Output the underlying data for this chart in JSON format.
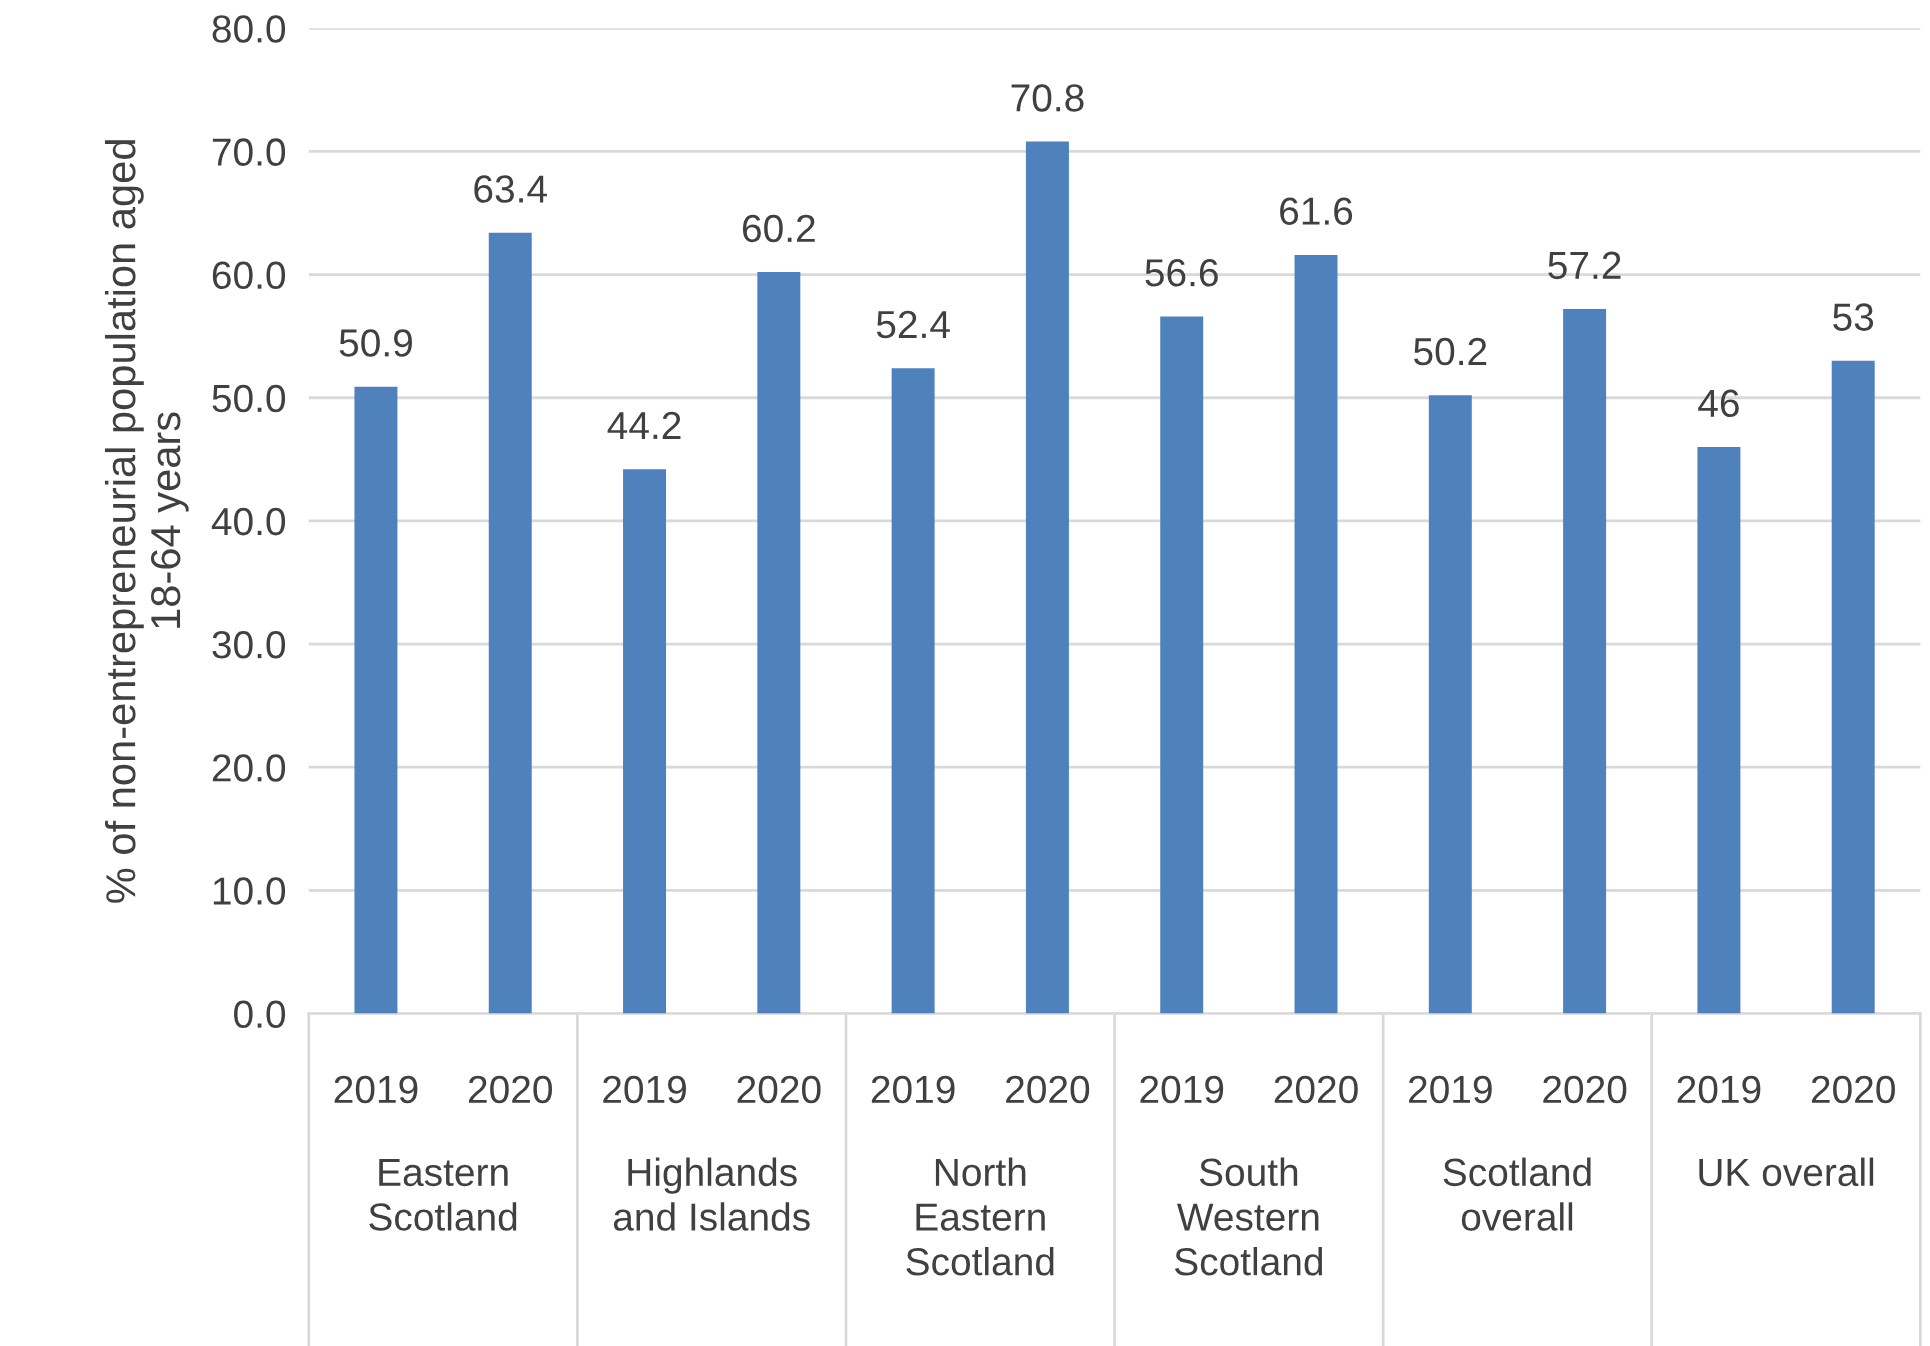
{
  "chart_data": {
    "type": "bar",
    "ylabel": "% of non-entrepreneurial population aged\n18-64 years",
    "categories": [
      "2019",
      "2020",
      "2019",
      "2020",
      "2019",
      "2020",
      "2019",
      "2020",
      "2019",
      "2020",
      "2019",
      "2020"
    ],
    "values": [
      50.9,
      63.4,
      44.2,
      60.2,
      52.4,
      70.8,
      56.6,
      61.6,
      50.2,
      57.2,
      46,
      53
    ],
    "color": "#4f81bd",
    "annotations": [
      "Eastern\nScotland",
      "Highlands\nand Islands",
      "North\nEastern\nScotland",
      "South\nWestern\nScotland",
      "Scotland\noverall",
      "UK overall"
    ],
    "ylim": [
      0,
      80
    ],
    "yticks": [
      {
        "value": 0,
        "label": "0.0"
      },
      {
        "value": 10,
        "label": "10.0"
      },
      {
        "value": 20,
        "label": "20.0"
      },
      {
        "value": 30,
        "label": "30.0"
      },
      {
        "value": 40,
        "label": "40.0"
      },
      {
        "value": 50,
        "label": "50.0"
      },
      {
        "value": 60,
        "label": "60.0"
      },
      {
        "value": 70,
        "label": "70.0"
      },
      {
        "value": 80,
        "label": "80.0"
      }
    ],
    "grid": "y",
    "data_labels": true
  }
}
